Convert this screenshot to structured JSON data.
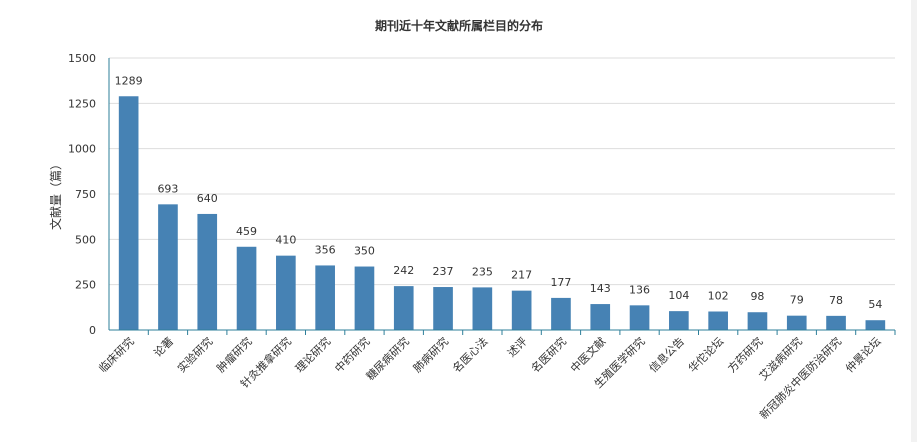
{
  "colors": {
    "bar": "#4682b4",
    "axis": "#2e7f9a",
    "grid": "#dddddd",
    "text": "#333333"
  },
  "chart_data": {
    "type": "bar",
    "title": "期刊近十年文献所属栏目的分布",
    "xlabel": "",
    "ylabel": "文献量（篇）",
    "ylim": [
      0,
      1500
    ],
    "yticks": [
      0,
      250,
      500,
      750,
      1000,
      1250,
      1500
    ],
    "grid": true,
    "categories": [
      "临床研究",
      "论著",
      "实验研究",
      "肿瘤研究",
      "针灸推拿研究",
      "理论研究",
      "中药研究",
      "糖尿病研究",
      "肺病研究",
      "名医心法",
      "述评",
      "名医研究",
      "中医文献",
      "生殖医学研究",
      "信息公告",
      "华佗论坛",
      "方药研究",
      "艾滋病研究",
      "新冠肺炎中医防治研究",
      "仲景论坛"
    ],
    "values": [
      1289,
      693,
      640,
      459,
      410,
      356,
      350,
      242,
      237,
      235,
      217,
      177,
      143,
      136,
      104,
      102,
      98,
      79,
      78,
      54
    ]
  }
}
